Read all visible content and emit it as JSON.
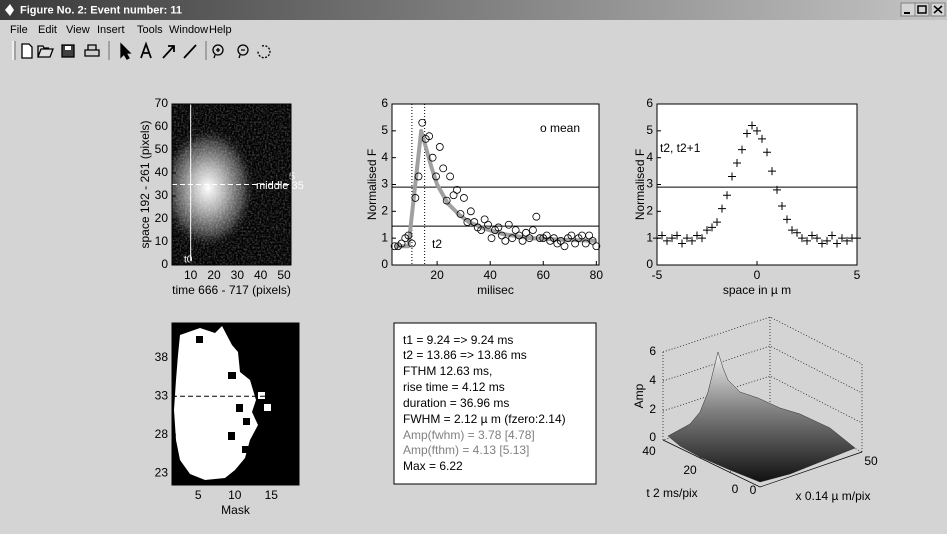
{
  "window": {
    "title": "Figure No. 2: Event number: 11"
  },
  "menu": [
    "File",
    "Edit",
    "View",
    "Insert",
    "Tools",
    "Window",
    "Help"
  ],
  "axes": [
    {
      "xlabel": "time 666 - 717 (pixels)",
      "ylabel": "space 192 - 261 (pixels)",
      "xlim": [
        2,
        53
      ],
      "ylim": [
        0,
        70
      ],
      "xticks": [
        10,
        20,
        30,
        40,
        50
      ],
      "yticks": [
        0,
        10,
        20,
        30,
        40,
        50,
        60,
        70
      ],
      "annotations": [
        "middle 35",
        "5",
        "t0"
      ],
      "hlines": [
        35
      ],
      "vlines": [
        10
      ],
      "line_color": "#ffffff",
      "hline_dashed": true
    },
    {
      "xlabel": "milisec",
      "ylabel": "Normalised F",
      "xlim": [
        3,
        81
      ],
      "ylim": [
        0,
        6
      ],
      "xticks": [
        20,
        40,
        60,
        80
      ],
      "yticks": [
        0,
        1,
        2,
        3,
        4,
        5,
        6
      ],
      "annotations": [
        "o mean",
        "t2"
      ],
      "hlines": [
        2.9,
        1.45
      ],
      "vlines": [
        10.5,
        15.3
      ],
      "line_color": "#000000",
      "vline_dashed": true,
      "marker": "circle",
      "x": [
        4,
        5.3,
        6.6,
        8,
        9.2,
        10.5,
        11.8,
        13,
        14.4,
        15.7,
        17,
        18.3,
        19.6,
        21,
        22.3,
        23.6,
        24.9,
        26.2,
        27.5,
        28.8,
        30.1,
        31.4,
        32.7,
        34,
        35.3,
        36.6,
        37.9,
        39.2,
        40.5,
        41.8,
        43.1,
        44.4,
        45.7,
        47,
        48.3,
        49.6,
        50.9,
        52.2,
        53.5,
        54.8,
        56.1,
        57.4,
        58.7,
        60,
        61.3,
        62.6,
        64,
        65.3,
        66.6,
        68,
        69.3,
        70.6,
        72,
        73.3,
        74.6,
        76,
        77.3,
        78.6,
        80
      ],
      "values": [
        0.7,
        0.7,
        0.8,
        1,
        1.1,
        0.8,
        2.5,
        3.3,
        5.3,
        4.7,
        4.8,
        4,
        3.3,
        4.4,
        3.6,
        2.4,
        3.3,
        2.6,
        2.8,
        1.9,
        2.5,
        1.6,
        2,
        1.6,
        1.4,
        1.3,
        1.7,
        1.5,
        1,
        1.3,
        1.4,
        1.1,
        0.9,
        1.5,
        1,
        1.3,
        1.1,
        0.9,
        1.2,
        1,
        1.3,
        1.8,
        1,
        1,
        1.1,
        0.9,
        1,
        0.8,
        0.9,
        0.7,
        1,
        1.1,
        0.8,
        1,
        1.1,
        0.8,
        1.1,
        0.9,
        0.7
      ],
      "fit_x": [
        4,
        9.2,
        14,
        16,
        18,
        20,
        24,
        28,
        32,
        38,
        45,
        55,
        65,
        80
      ],
      "fit_values": [
        0.7,
        0.7,
        5,
        4.3,
        3.6,
        3,
        2.3,
        1.9,
        1.6,
        1.35,
        1.15,
        1,
        0.95,
        0.9
      ],
      "fit_color": "#a0a0a0"
    },
    {
      "xlabel": "space in µ m",
      "ylabel": "Normalised F",
      "xlim": [
        -5,
        5
      ],
      "ylim": [
        0,
        6
      ],
      "xticks": [
        -5,
        0,
        5
      ],
      "yticks": [
        0,
        1,
        2,
        3,
        4,
        5,
        6
      ],
      "annotations": [
        "t2, t2+1"
      ],
      "hlines": [
        2.9
      ],
      "line_color": "#000000",
      "marker": "plus",
      "x": [
        -5,
        -4.75,
        -4.5,
        -4.25,
        -4,
        -3.75,
        -3.5,
        -3.25,
        -3,
        -2.75,
        -2.5,
        -2.25,
        -2,
        -1.75,
        -1.5,
        -1.25,
        -1,
        -0.75,
        -0.5,
        -0.25,
        0,
        0.25,
        0.5,
        0.75,
        1,
        1.25,
        1.5,
        1.75,
        2,
        2.25,
        2.5,
        2.75,
        3,
        3.25,
        3.5,
        3.75,
        4,
        4.25,
        4.5,
        4.75,
        5
      ],
      "values": [
        1,
        1.1,
        0.9,
        1,
        1.1,
        0.8,
        1,
        0.9,
        1.1,
        1,
        1.3,
        1.4,
        1.6,
        2.1,
        2.6,
        3.3,
        3.8,
        4.3,
        4.9,
        5.2,
        5,
        4.7,
        4.2,
        3.5,
        2.8,
        2.2,
        1.7,
        1.3,
        1.2,
        1,
        0.9,
        1.1,
        1,
        0.8,
        0.9,
        1.1,
        0.8,
        1,
        0.9,
        1,
        1
      ]
    },
    {
      "xlabel": "Mask",
      "xlim": [
        1.4,
        18.8
      ],
      "ylim": [
        21.5,
        42.5
      ],
      "xticks": [
        5,
        10,
        15
      ],
      "yticks": [
        23,
        28,
        33,
        38
      ],
      "hlines": [
        33
      ],
      "line_color": "#000000",
      "hline_dashed": true
    }
  ],
  "info": {
    "lines": [
      "t1 = 9.24 => 9.24 ms",
      "t2 = 13.86 => 13.86 ms",
      "FTHM 12.63 ms,",
      "rise time = 4.12 ms",
      "duration = 36.96 ms",
      "FWHM = 2.12 µ m (fzero:2.14)",
      "Amp(fwhm) = 3.78 [4.78]",
      "Amp(fthm) = 4.13 [5.13]",
      "Max = 6.22"
    ]
  },
  "surface": {
    "zlabel": "Amp",
    "zticks": [
      0,
      2,
      4,
      6
    ],
    "yticks": [
      0,
      20,
      40
    ],
    "xticks": [
      0,
      50
    ],
    "ylabel": "t 2 ms/pix",
    "xlabel": "x 0.14 µ m/pix"
  }
}
